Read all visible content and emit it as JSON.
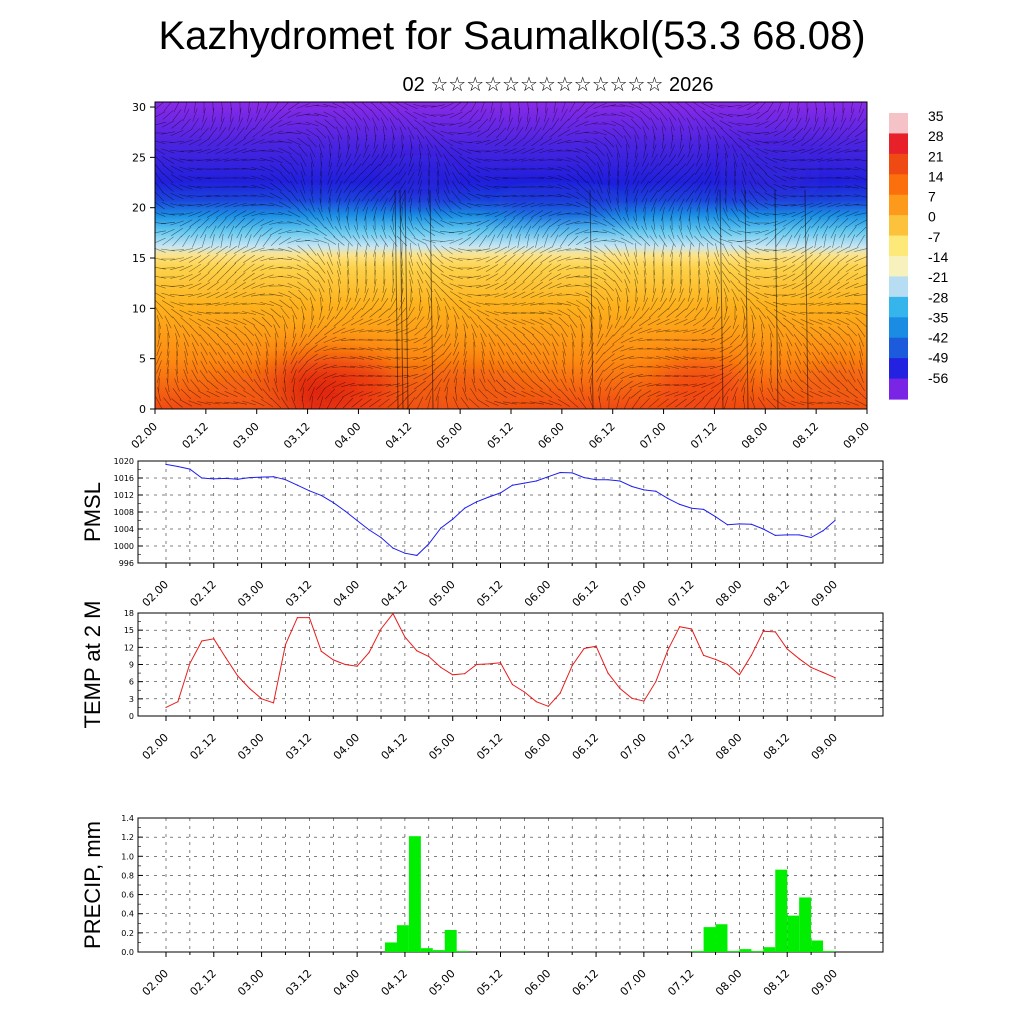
{
  "title": "Kazhydromet for Saumalkol(53.3 68.08)",
  "subtitle": "02 ☆☆☆☆☆☆☆☆☆☆☆☆☆ 2026",
  "x_ticks": [
    "02.00",
    "02.12",
    "03.00",
    "03.12",
    "04.00",
    "04.12",
    "05.00",
    "05.12",
    "06.00",
    "06.12",
    "07.00",
    "07.12",
    "08.00",
    "08.12",
    "09.00"
  ],
  "chart_data": [
    {
      "type": "heatmap",
      "name": "temperature-wind-cross-section",
      "y_ticks": [
        0,
        5,
        10,
        15,
        20,
        25,
        30
      ],
      "ylim": [
        0,
        30.5
      ],
      "colorbar": {
        "labels": [
          35,
          28,
          21,
          14,
          7,
          0,
          -7,
          -14,
          -21,
          -28,
          -35,
          -42,
          -49,
          -56
        ],
        "colors": [
          "#f5c2c7",
          "#e8202a",
          "#f04a14",
          "#fb6f0c",
          "#fd9a1b",
          "#fdc23c",
          "#fde87a",
          "#f7f2bd",
          "#b6ddf2",
          "#35b5ec",
          "#1b8ce4",
          "#1b5bdc",
          "#2222e0",
          "#7a24e6"
        ]
      }
    },
    {
      "type": "line",
      "ylabel": "PMSL",
      "y_ticks": [
        996,
        1000,
        1004,
        1008,
        1012,
        1016,
        1020
      ],
      "ylim": [
        996,
        1020
      ],
      "color": "#1e1ef0",
      "x": [
        0,
        3,
        6,
        9,
        12,
        15,
        18,
        21,
        24,
        27,
        30,
        33,
        36,
        39,
        42,
        45,
        48,
        51,
        54,
        57,
        60,
        63,
        66,
        69,
        72,
        75,
        78,
        81,
        84,
        87,
        90,
        93,
        96,
        99,
        102,
        105,
        108,
        111,
        114,
        117,
        120,
        123,
        126,
        129,
        132,
        135,
        138,
        141,
        144,
        147,
        150,
        153,
        156,
        159,
        162,
        165,
        168
      ],
      "values": [
        1019.2,
        1018.7,
        1018.1,
        1016.0,
        1015.8,
        1015.9,
        1015.7,
        1016.1,
        1016.2,
        1016.3,
        1015.6,
        1014.3,
        1013.0,
        1011.9,
        1010.2,
        1008.2,
        1006.0,
        1003.8,
        1002.0,
        999.5,
        998.3,
        997.8,
        1000.5,
        1004.2,
        1006.3,
        1008.9,
        1010.4,
        1011.5,
        1012.5,
        1014.3,
        1014.8,
        1015.3,
        1016.3,
        1017.3,
        1017.2,
        1016.1,
        1015.6,
        1015.6,
        1015.3,
        1014.0,
        1013.2,
        1012.9,
        1011.2,
        1009.8,
        1008.9,
        1008.6,
        1006.9,
        1005.0,
        1005.2,
        1005.1,
        1004.0,
        1002.5,
        1002.6,
        1002.6,
        1002.0,
        1003.6,
        1006.0
      ]
    },
    {
      "type": "line",
      "ylabel": "TEMP at 2 M",
      "y_ticks": [
        0,
        3,
        6,
        9,
        12,
        15,
        18
      ],
      "ylim": [
        0,
        18
      ],
      "color": "#e81c1c",
      "x": [
        0,
        3,
        6,
        9,
        12,
        15,
        18,
        21,
        24,
        27,
        30,
        33,
        36,
        39,
        42,
        45,
        48,
        51,
        54,
        57,
        60,
        63,
        66,
        69,
        72,
        75,
        78,
        81,
        84,
        87,
        90,
        93,
        96,
        99,
        102,
        105,
        108,
        111,
        114,
        117,
        120,
        123,
        126,
        129,
        132,
        135,
        138,
        141,
        144,
        147,
        150,
        153,
        156,
        159,
        162,
        165,
        168
      ],
      "values": [
        1.5,
        2.5,
        9.2,
        13.1,
        13.5,
        10.2,
        7.0,
        4.8,
        3.0,
        2.3,
        12.5,
        17.2,
        17.2,
        11.3,
        9.8,
        9.0,
        8.7,
        11.1,
        15.2,
        17.9,
        13.8,
        11.4,
        10.4,
        8.5,
        7.2,
        7.4,
        9.0,
        9.1,
        9.3,
        5.5,
        4.2,
        2.5,
        1.7,
        4.0,
        8.8,
        11.8,
        12.2,
        7.5,
        4.8,
        3.1,
        2.6,
        6.0,
        11.5,
        15.6,
        15.2,
        10.6,
        9.9,
        9.0,
        7.2,
        10.6,
        14.8,
        14.7,
        11.7,
        10.0,
        8.5,
        7.6,
        6.7
      ]
    },
    {
      "type": "bar",
      "ylabel": "PRECIP, mm",
      "y_ticks": [
        0.0,
        0.2,
        0.4,
        0.6,
        0.8,
        1.0,
        1.2,
        1.4
      ],
      "ylim": [
        0,
        1.4
      ],
      "color": "#00ee00",
      "x": [
        58,
        61,
        64,
        67,
        70,
        73,
        76,
        135,
        138,
        141,
        144,
        147,
        150,
        153,
        156,
        159,
        162,
        165,
        168
      ],
      "values": [
        0.1,
        0.28,
        1.21,
        0.04,
        0.02,
        0.23,
        0.01,
        0.01,
        0.26,
        0.29,
        0.01,
        0.03,
        0.01,
        0.05,
        0.86,
        0.38,
        0.57,
        0.12,
        0.01
      ]
    }
  ]
}
